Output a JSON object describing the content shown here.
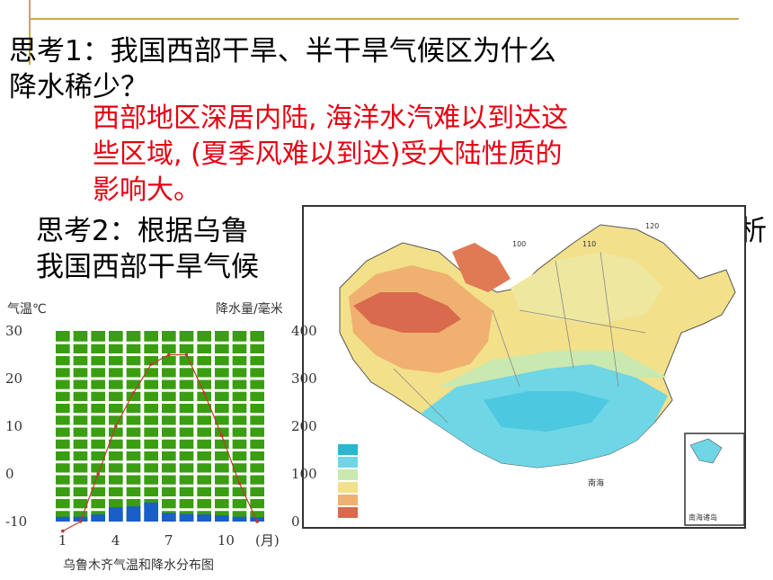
{
  "question1": {
    "line1": "思考1：我国西部干旱、半干旱气候区为什么",
    "line2": "降水稀少？"
  },
  "answer1": {
    "line1": "西部地区深居内陆, 海洋水汽难以到达这",
    "line2": "些区域, (夏季风难以到达)受大陆性质的",
    "line3": "影响大。"
  },
  "question2": {
    "line1": "思考2：根据乌鲁",
    "line2": "我国西部干旱气候",
    "tail": "析"
  },
  "chart_data": {
    "type": "bar",
    "title": "乌鲁木齐气温和降水分布图",
    "ylabel_left": "气温℃",
    "ylabel_right": "降水量/毫米",
    "xlabel": "(月)",
    "x_ticks": [
      "1",
      "4",
      "7",
      "10"
    ],
    "temp_ticks": [
      "30",
      "20",
      "10",
      "0",
      "-10"
    ],
    "precip_ticks": [
      "400",
      "300",
      "200",
      "100",
      "0"
    ],
    "months": [
      1,
      2,
      3,
      4,
      5,
      6,
      7,
      8,
      9,
      10,
      11,
      12
    ],
    "precipitation_mm": [
      10,
      10,
      15,
      30,
      32,
      40,
      18,
      16,
      15,
      13,
      10,
      9
    ],
    "temperature_c": [
      -12,
      -10,
      0,
      10,
      17,
      23,
      25,
      25,
      17,
      8,
      -2,
      -10
    ],
    "temp_range": [
      -10,
      30
    ],
    "precip_range": [
      0,
      400
    ],
    "colors": {
      "background": "#3a9d12",
      "precip": "#1a5ec9",
      "temp_line": "#c0392b"
    }
  },
  "map": {
    "labels": [
      "100",
      "110",
      "120",
      "南海",
      "南海诸岛"
    ]
  }
}
